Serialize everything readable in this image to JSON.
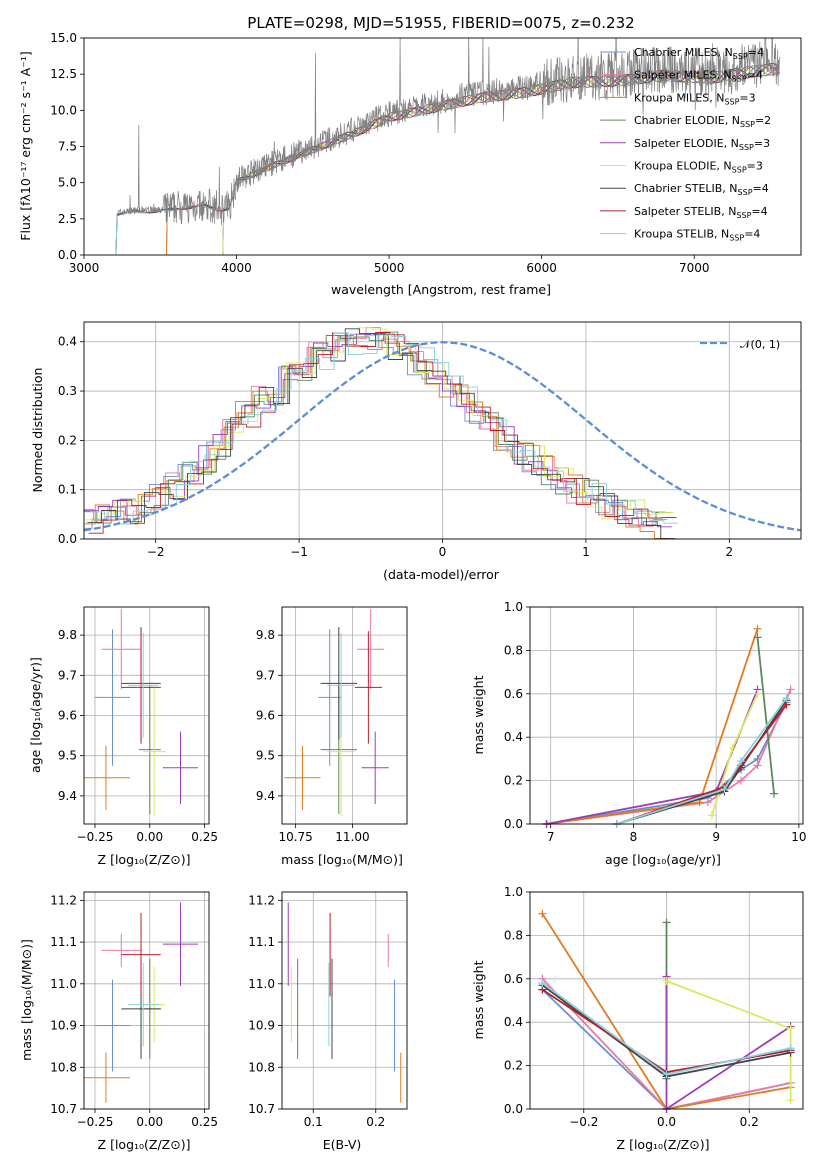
{
  "colors": {
    "chabrier_miles": "#6b8fd6",
    "salpeter_miles": "#e879a6",
    "kroupa_miles": "#e07b22",
    "chabrier_elodie": "#5a8a5a",
    "salpeter_elodie": "#9a3fb8",
    "kroupa_elodie": "#d7ea5f",
    "chabrier_stelib": "#444444",
    "salpeter_stelib": "#b81f2a",
    "kroupa_stelib": "#86d2dd",
    "data": "#808080",
    "normal": "#5b8ed6"
  },
  "chart_data": [
    {
      "id": "spectrum",
      "type": "line",
      "title": "PLATE=0298, MJD=51955, FIBERID=0075, z=0.232",
      "xlabel": "wavelength [Angstrom, rest frame]",
      "ylabel": "Flux [fλ10⁻¹⁷ erg cm⁻² s⁻¹ A⁻¹]",
      "xlim": [
        3000,
        7700
      ],
      "ylim": [
        0,
        15
      ],
      "xticks": [
        "3000",
        "4000",
        "5000",
        "6000",
        "7000"
      ],
      "yticks": [
        "0.0",
        "2.5",
        "5.0",
        "7.5",
        "10.0",
        "12.5",
        "15.0"
      ],
      "grid": false,
      "legend_position": "top-right",
      "continuum": [
        [
          3200,
          0
        ],
        [
          3210,
          2.9
        ],
        [
          3350,
          3.1
        ],
        [
          3500,
          3.1
        ],
        [
          3600,
          3.3
        ],
        [
          3800,
          3.5
        ],
        [
          3900,
          3.2
        ],
        [
          3950,
          3.3
        ],
        [
          4000,
          5.2
        ],
        [
          4200,
          6.2
        ],
        [
          4500,
          7.5
        ],
        [
          4800,
          8.8
        ],
        [
          5000,
          9.8
        ],
        [
          5300,
          10.5
        ],
        [
          5600,
          11.2
        ],
        [
          5900,
          11.6
        ],
        [
          6200,
          12.3
        ],
        [
          6500,
          12.4
        ],
        [
          6800,
          12.8
        ],
        [
          7100,
          12.6
        ],
        [
          7400,
          13.1
        ],
        [
          7560,
          13.3
        ]
      ],
      "series": [
        {
          "name": "Chabrier MILES, N_SSP=4",
          "color_key": "chabrier_miles",
          "start": 3540
        },
        {
          "name": "Salpeter MILES, N_SSP=4",
          "color_key": "salpeter_miles",
          "start": 3540
        },
        {
          "name": "Kroupa MILES, N_SSP=3",
          "color_key": "kroupa_miles",
          "start": 3540
        },
        {
          "name": "Chabrier ELODIE, N_SSP=2",
          "color_key": "chabrier_elodie",
          "start": 3910
        },
        {
          "name": "Salpeter ELODIE, N_SSP=3",
          "color_key": "salpeter_elodie",
          "start": 3910
        },
        {
          "name": "Kroupa ELODIE, N_SSP=3",
          "color_key": "kroupa_elodie",
          "start": 3910
        },
        {
          "name": "Chabrier STELIB, N_SSP=4",
          "color_key": "chabrier_stelib",
          "start": 3210
        },
        {
          "name": "Salpeter STELIB, N_SSP=4",
          "color_key": "salpeter_stelib",
          "start": 3210
        },
        {
          "name": "Kroupa STELIB, N_SSP=4",
          "color_key": "kroupa_stelib",
          "start": 3210
        }
      ]
    },
    {
      "id": "residuals",
      "type": "line",
      "xlabel": "(data-model)/error",
      "ylabel": "Normed distribution",
      "xlim": [
        -2.5,
        2.5
      ],
      "ylim": [
        0,
        0.44
      ],
      "xticks": [
        "−2",
        "−1",
        "0",
        "1",
        "2"
      ],
      "yticks": [
        "0.0",
        "0.1",
        "0.2",
        "0.3",
        "0.4"
      ],
      "grid": true,
      "legend_position": "top-right",
      "legend_label": "𝒩(0, 1)",
      "bin_width": 0.1,
      "envelope": [
        0.03,
        0.04,
        0.05,
        0.06,
        0.075,
        0.09,
        0.11,
        0.13,
        0.16,
        0.19,
        0.22,
        0.25,
        0.28,
        0.3,
        0.33,
        0.35,
        0.37,
        0.39,
        0.4,
        0.4,
        0.41,
        0.39,
        0.39,
        0.36,
        0.34,
        0.31,
        0.29,
        0.26,
        0.23,
        0.2,
        0.18,
        0.16,
        0.14,
        0.12,
        0.1,
        0.09,
        0.07,
        0.06,
        0.05,
        0.04,
        0.03
      ]
    },
    {
      "id": "age_vs_Z",
      "type": "scatter",
      "xlabel": "Z [log₁₀(Z/Z⊙)]",
      "ylabel": "age  [log₁₀(age/yr)]",
      "xlim": [
        -0.3,
        0.27
      ],
      "ylim": [
        9.33,
        9.87
      ],
      "xticks": [
        "−0.25",
        "0.00",
        "0.25"
      ],
      "yticks": [
        "9.4",
        "9.5",
        "9.6",
        "9.7",
        "9.8"
      ],
      "grid": true,
      "points": [
        {
          "c": "chabrier_miles",
          "x": -0.17,
          "xe": 0.08,
          "y": 9.645,
          "ye": 0.17
        },
        {
          "c": "salpeter_miles",
          "x": -0.13,
          "xe": 0.09,
          "y": 9.765,
          "ye": 0.1
        },
        {
          "c": "kroupa_miles",
          "x": -0.2,
          "xe": 0.11,
          "y": 9.445,
          "ye": 0.08
        },
        {
          "c": "chabrier_elodie",
          "x": 0.0,
          "xe": 0.05,
          "y": 9.515,
          "ye": 0.16
        },
        {
          "c": "salpeter_elodie",
          "x": 0.14,
          "xe": 0.08,
          "y": 9.47,
          "ye": 0.09
        },
        {
          "c": "kroupa_elodie",
          "x": 0.02,
          "xe": 0.05,
          "y": 9.51,
          "ye": 0.16
        },
        {
          "c": "chabrier_stelib",
          "x": -0.04,
          "xe": 0.09,
          "y": 9.68,
          "ye": 0.14
        },
        {
          "c": "salpeter_stelib",
          "x": -0.04,
          "xe": 0.09,
          "y": 9.67,
          "ye": 0.14
        },
        {
          "c": "kroupa_stelib",
          "x": -0.03,
          "xe": 0.07,
          "y": 9.675,
          "ye": 0.13
        }
      ]
    },
    {
      "id": "age_vs_mass",
      "type": "scatter",
      "xlabel": "mass [log₁₀(M/M⊙)]",
      "ylabel": "",
      "xlim": [
        10.69,
        11.24
      ],
      "ylim": [
        9.33,
        9.87
      ],
      "xticks": [
        "10.75",
        "11.00"
      ],
      "yticks": [
        "9.4",
        "9.5",
        "9.6",
        "9.7",
        "9.8"
      ],
      "grid": true,
      "points": [
        {
          "c": "chabrier_miles",
          "x": 10.9,
          "xe": 0.05,
          "y": 9.645,
          "ye": 0.17
        },
        {
          "c": "salpeter_miles",
          "x": 11.08,
          "xe": 0.06,
          "y": 9.765,
          "ye": 0.1
        },
        {
          "c": "kroupa_miles",
          "x": 10.78,
          "xe": 0.08,
          "y": 9.445,
          "ye": 0.08
        },
        {
          "c": "chabrier_elodie",
          "x": 10.94,
          "xe": 0.08,
          "y": 9.515,
          "ye": 0.16
        },
        {
          "c": "salpeter_elodie",
          "x": 11.1,
          "xe": 0.06,
          "y": 9.47,
          "ye": 0.09
        },
        {
          "c": "kroupa_elodie",
          "x": 10.95,
          "xe": 0.06,
          "y": 9.51,
          "ye": 0.16
        },
        {
          "c": "chabrier_stelib",
          "x": 10.94,
          "xe": 0.08,
          "y": 9.68,
          "ye": 0.14
        },
        {
          "c": "salpeter_stelib",
          "x": 11.07,
          "xe": 0.06,
          "y": 9.67,
          "ye": 0.14
        },
        {
          "c": "kroupa_stelib",
          "x": 10.95,
          "xe": 0.06,
          "y": 9.675,
          "ye": 0.13
        }
      ]
    },
    {
      "id": "weight_vs_age",
      "type": "line",
      "xlabel": "age  [log₁₀(age/yr)]",
      "ylabel": "mass weight",
      "xlim": [
        6.75,
        10.05
      ],
      "ylim": [
        0,
        1.0
      ],
      "xticks": [
        "7",
        "8",
        "9",
        "10"
      ],
      "yticks": [
        "0.0",
        "0.2",
        "0.4",
        "0.6",
        "0.8",
        "1.0"
      ],
      "grid": true,
      "series": [
        {
          "c": "chabrier_miles",
          "x": [
            6.95,
            8.9,
            9.3,
            9.5,
            9.85
          ],
          "y": [
            0.0,
            0.12,
            0.25,
            0.3,
            0.56
          ]
        },
        {
          "c": "salpeter_miles",
          "x": [
            6.95,
            8.9,
            9.3,
            9.5,
            9.9
          ],
          "y": [
            0.0,
            0.1,
            0.2,
            0.27,
            0.62
          ]
        },
        {
          "c": "kroupa_miles",
          "x": [
            6.95,
            8.8,
            9.5
          ],
          "y": [
            0.0,
            0.1,
            0.9
          ]
        },
        {
          "c": "chabrier_elodie",
          "x": [
            9.5,
            9.7
          ],
          "y": [
            0.86,
            0.14
          ]
        },
        {
          "c": "salpeter_elodie",
          "x": [
            6.95,
            9.0,
            9.5
          ],
          "y": [
            0.0,
            0.15,
            0.62
          ]
        },
        {
          "c": "kroupa_elodie",
          "x": [
            8.95,
            9.2,
            9.5
          ],
          "y": [
            0.04,
            0.35,
            0.6
          ]
        },
        {
          "c": "chabrier_stelib",
          "x": [
            7.8,
            9.1,
            9.3,
            9.85
          ],
          "y": [
            0.0,
            0.15,
            0.26,
            0.57
          ]
        },
        {
          "c": "salpeter_stelib",
          "x": [
            7.8,
            9.1,
            9.3,
            9.85
          ],
          "y": [
            0.0,
            0.17,
            0.27,
            0.55
          ]
        },
        {
          "c": "kroupa_stelib",
          "x": [
            7.8,
            9.1,
            9.3,
            9.85
          ],
          "y": [
            0.0,
            0.16,
            0.29,
            0.58
          ]
        }
      ]
    },
    {
      "id": "mass_vs_Z",
      "type": "scatter",
      "xlabel": "Z [log₁₀(Z/Z⊙)]",
      "ylabel": "mass [log₁₀(M/M⊙)]",
      "xlim": [
        -0.3,
        0.27
      ],
      "ylim": [
        10.7,
        11.22
      ],
      "xticks": [
        "−0.25",
        "0.00",
        "0.25"
      ],
      "yticks": [
        "10.7",
        "10.8",
        "10.9",
        "11.0",
        "11.1",
        "11.2"
      ],
      "grid": true,
      "points": [
        {
          "c": "chabrier_miles",
          "x": -0.17,
          "xe": 0.08,
          "y": 10.9,
          "ye": 0.11
        },
        {
          "c": "salpeter_miles",
          "x": -0.13,
          "xe": 0.09,
          "y": 11.08,
          "ye": 0.04
        },
        {
          "c": "kroupa_miles",
          "x": -0.2,
          "xe": 0.11,
          "y": 10.775,
          "ye": 0.06
        },
        {
          "c": "chabrier_elodie",
          "x": 0.0,
          "xe": 0.05,
          "y": 10.94,
          "ye": 0.12
        },
        {
          "c": "salpeter_elodie",
          "x": 0.14,
          "xe": 0.08,
          "y": 11.095,
          "ye": 0.1
        },
        {
          "c": "kroupa_elodie",
          "x": 0.02,
          "xe": 0.05,
          "y": 10.95,
          "ye": 0.09
        },
        {
          "c": "chabrier_stelib",
          "x": -0.04,
          "xe": 0.09,
          "y": 10.94,
          "ye": 0.12
        },
        {
          "c": "salpeter_stelib",
          "x": -0.04,
          "xe": 0.09,
          "y": 11.07,
          "ye": 0.1
        },
        {
          "c": "kroupa_stelib",
          "x": -0.03,
          "xe": 0.07,
          "y": 10.95,
          "ye": 0.1
        }
      ]
    },
    {
      "id": "mass_vs_ebv",
      "type": "scatter",
      "xlabel": "E(B-V)",
      "ylabel": "",
      "xlim": [
        0.05,
        0.25
      ],
      "ylim": [
        10.7,
        11.22
      ],
      "xticks": [
        "0.1",
        "0.2"
      ],
      "yticks": [
        "10.7",
        "10.8",
        "10.9",
        "11.0",
        "11.1",
        "11.2"
      ],
      "grid": true,
      "points": [
        {
          "c": "chabrier_miles",
          "x": 0.23,
          "y": 10.9,
          "ye": 0.11
        },
        {
          "c": "salpeter_miles",
          "x": 0.22,
          "y": 11.08,
          "ye": 0.04
        },
        {
          "c": "kroupa_miles",
          "x": 0.24,
          "y": 10.775,
          "ye": 0.06
        },
        {
          "c": "chabrier_elodie",
          "x": 0.075,
          "y": 10.94,
          "ye": 0.12
        },
        {
          "c": "salpeter_elodie",
          "x": 0.06,
          "y": 11.095,
          "ye": 0.1
        },
        {
          "c": "kroupa_elodie",
          "x": 0.065,
          "y": 10.95,
          "ye": 0.09
        },
        {
          "c": "chabrier_stelib",
          "x": 0.13,
          "y": 10.94,
          "ye": 0.12
        },
        {
          "c": "salpeter_stelib",
          "x": 0.127,
          "y": 11.07,
          "ye": 0.1
        },
        {
          "c": "kroupa_stelib",
          "x": 0.125,
          "y": 10.95,
          "ye": 0.1
        }
      ]
    },
    {
      "id": "weight_vs_Z",
      "type": "line",
      "xlabel": "Z [log₁₀(Z/Z⊙)]",
      "ylabel": "mass weight",
      "xlim": [
        -0.33,
        0.33
      ],
      "ylim": [
        0,
        1.0
      ],
      "xticks": [
        "−0.2",
        "0.0",
        "0.2"
      ],
      "yticks": [
        "0.0",
        "0.2",
        "0.4",
        "0.6",
        "0.8",
        "1.0"
      ],
      "grid": true,
      "series": [
        {
          "c": "chabrier_miles",
          "x": [
            -0.3,
            0.0,
            0.3
          ],
          "y": [
            0.55,
            0.0,
            0.12
          ]
        },
        {
          "c": "salpeter_miles",
          "x": [
            -0.3,
            0.0,
            0.3
          ],
          "y": [
            0.6,
            0.0,
            0.12
          ]
        },
        {
          "c": "kroupa_miles",
          "x": [
            -0.3,
            0.0,
            0.3
          ],
          "y": [
            0.9,
            0.0,
            0.1
          ]
        },
        {
          "c": "chabrier_elodie",
          "x": [
            0.0,
            0.0
          ],
          "y": [
            0.86,
            0.14
          ]
        },
        {
          "c": "salpeter_elodie",
          "x": [
            0.0,
            0.0,
            0.3
          ],
          "y": [
            0.61,
            0.0,
            0.38
          ]
        },
        {
          "c": "kroupa_elodie",
          "x": [
            0.0,
            0.3,
            0.3
          ],
          "y": [
            0.59,
            0.37,
            0.04
          ]
        },
        {
          "c": "chabrier_stelib",
          "x": [
            -0.3,
            0.0,
            0.3
          ],
          "y": [
            0.57,
            0.15,
            0.26
          ]
        },
        {
          "c": "salpeter_stelib",
          "x": [
            -0.3,
            0.0,
            0.3
          ],
          "y": [
            0.55,
            0.17,
            0.27
          ]
        },
        {
          "c": "kroupa_stelib",
          "x": [
            -0.3,
            0.0,
            0.3
          ],
          "y": [
            0.58,
            0.16,
            0.28
          ]
        }
      ]
    }
  ]
}
